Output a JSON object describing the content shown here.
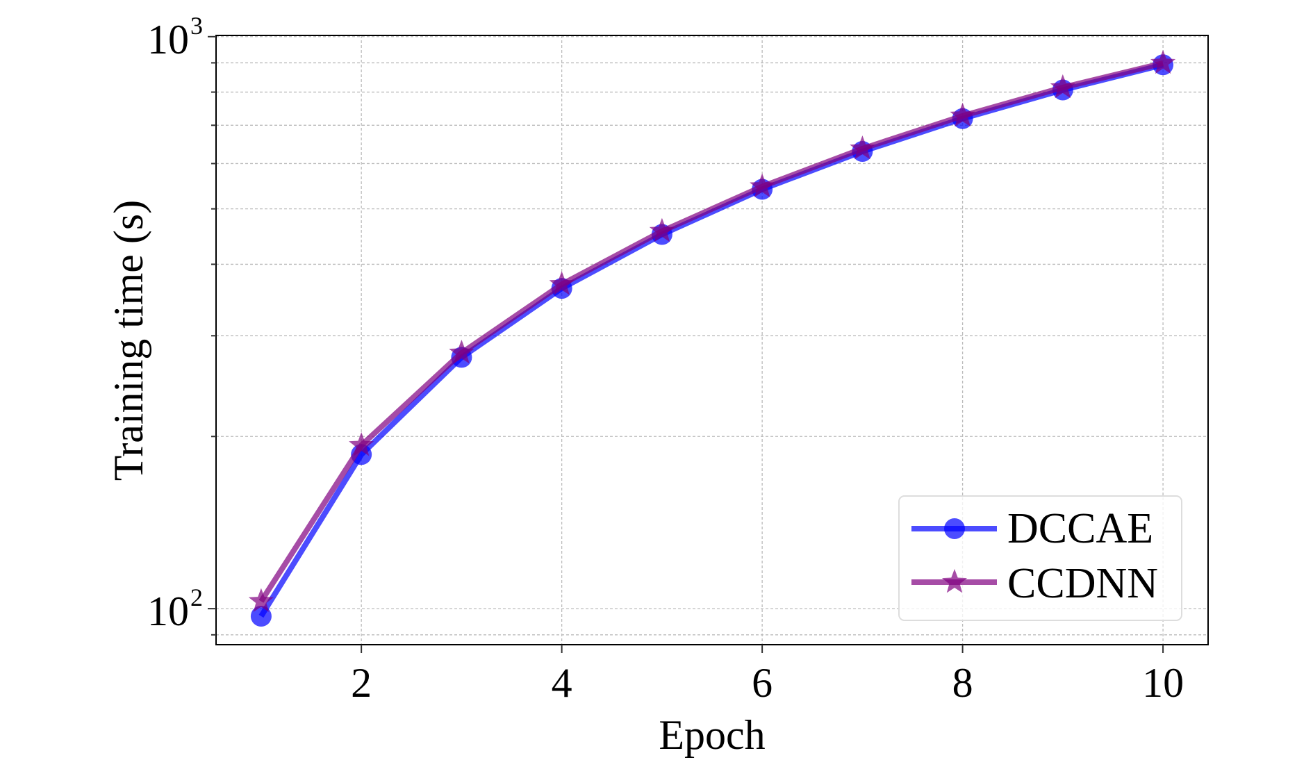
{
  "chart_data": {
    "type": "line",
    "title": "",
    "xlabel": "Epoch",
    "ylabel": "Training time (s)",
    "xscale": "linear",
    "yscale": "log",
    "xlim": [
      0.55,
      10.45
    ],
    "ylim": [
      86.5,
      1005
    ],
    "xticks": [
      2,
      4,
      6,
      8,
      10
    ],
    "yticks": [
      {
        "value": 100,
        "base": "10",
        "exp": "2"
      },
      {
        "value": 1000,
        "base": "10",
        "exp": "3"
      }
    ],
    "grid": true,
    "legend_position": "lower-right",
    "x": [
      1,
      2,
      3,
      4,
      5,
      6,
      7,
      8,
      9,
      10
    ],
    "series": [
      {
        "name": "DCCAE",
        "color": "#0000ff",
        "marker": "circle",
        "values": [
          97,
          186,
          275,
          363,
          451,
          541,
          630,
          719,
          807,
          893
        ]
      },
      {
        "name": "CCDNN",
        "color": "#800080",
        "marker": "star",
        "values": [
          103,
          193,
          280,
          369,
          457,
          547,
          637,
          727,
          815,
          899
        ]
      }
    ]
  }
}
